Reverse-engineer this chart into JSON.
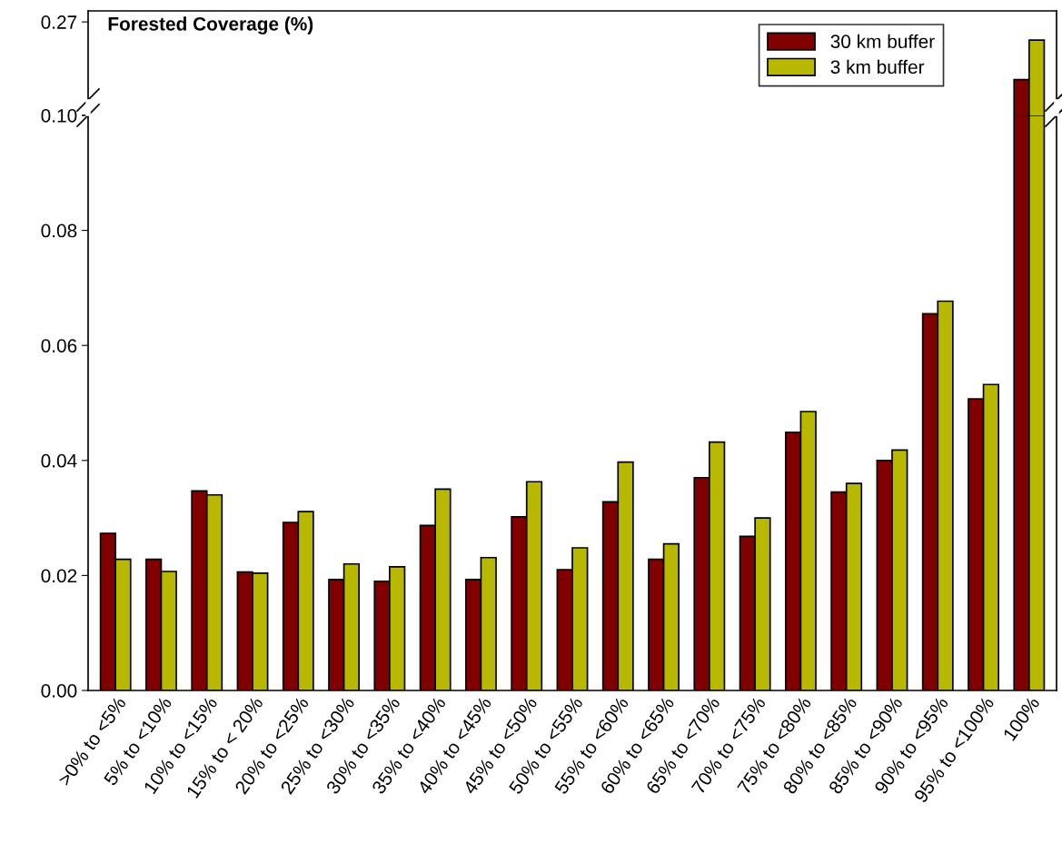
{
  "chart_data": [
    {
      "type": "bar",
      "title": "Forested Coverage (%)",
      "categories": [
        null,
        null,
        null,
        null,
        null,
        null,
        null,
        null,
        null,
        null,
        null,
        null,
        null,
        null,
        null,
        null,
        null,
        null,
        null,
        null,
        null
      ],
      "series": [
        {
          "name": "30 km buffer",
          "color": "#800000",
          "values": [
            null,
            null,
            null,
            null,
            null,
            null,
            null,
            null,
            null,
            null,
            null,
            null,
            null,
            null,
            null,
            null,
            null,
            null,
            null,
            null,
            0.165
          ]
        },
        {
          "name": "3 km buffer",
          "color": "#b8b800",
          "values": [
            null,
            null,
            null,
            null,
            null,
            null,
            null,
            null,
            null,
            null,
            null,
            null,
            null,
            null,
            null,
            null,
            null,
            null,
            null,
            null,
            0.237
          ]
        }
      ],
      "ylim": [
        0.1,
        0.29
      ],
      "yticks": [
        {
          "value": 0.1,
          "label": "0.10"
        },
        0.27
      ],
      "tick_labels": "y",
      "legend": "top right"
    },
    {
      "type": "bar",
      "categories": [
        ">0% to <5%",
        "5% to <10%",
        "10% to <15%",
        "15% to < 20%",
        "20% to <25%",
        "25% to <30%",
        "30% to <35%",
        "35% to <40%",
        "40% to <45%",
        "45% to <50%",
        "50% to <55%",
        "55% to <60%",
        "60% to <65%",
        "65% to <70%",
        "70% to <75%",
        "75% to <80%",
        "80% to <85%",
        "85% to <90%",
        "90% to <95%",
        "95% to <100%",
        "100%"
      ],
      "series": [
        {
          "color": "#800000",
          "values": [
            0.0273,
            0.0228,
            0.0347,
            0.0206,
            0.0292,
            0.0193,
            0.019,
            0.0287,
            0.0193,
            0.0302,
            0.021,
            0.0328,
            0.0228,
            0.037,
            0.0268,
            0.0449,
            0.0345,
            0.04,
            0.0655,
            0.0507,
            0.1
          ]
        },
        {
          "color": "#b8b800",
          "values": [
            0.0228,
            0.0207,
            0.034,
            0.0204,
            0.0311,
            0.022,
            0.0215,
            0.035,
            0.0231,
            0.0363,
            0.0248,
            0.0397,
            0.0255,
            0.0432,
            0.03,
            0.0485,
            0.036,
            0.0418,
            0.0677,
            0.0532,
            0.1
          ]
        }
      ],
      "ylim": [
        0,
        0.1
      ],
      "yticks": [
        {
          "value": 0,
          "label": "0.00"
        },
        {
          "value": 0.02,
          "label": "0.02"
        },
        {
          "value": 0.04,
          "label": "0.04"
        },
        {
          "value": 0.06,
          "label": "0.06"
        },
        {
          "value": 0.08,
          "label": "0.08"
        },
        {
          "value": 0.1,
          "label": null
        }
      ]
    }
  ]
}
